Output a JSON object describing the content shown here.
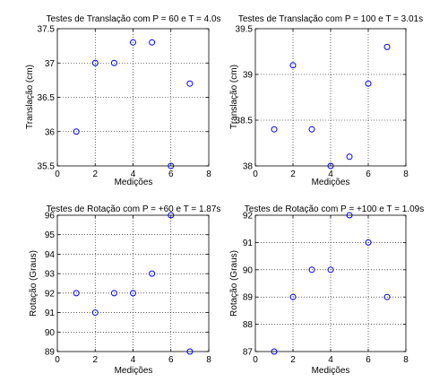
{
  "colors": {
    "marker": "#0000ff",
    "axis": "#000000",
    "grid": "#000000",
    "background": "#ffffff"
  },
  "chart_data": [
    {
      "type": "scatter",
      "title": "Testes de Translação com P = 60 e T = 4.0s",
      "xlabel": "Medições",
      "ylabel": "Translação (cm)",
      "xlim": [
        0,
        8
      ],
      "ylim": [
        35.5,
        37.5
      ],
      "xticks": [
        0,
        2,
        4,
        6,
        8
      ],
      "yticks": [
        35.5,
        36,
        36.5,
        37,
        37.5
      ],
      "xticklabels": [
        "0",
        "2",
        "4",
        "6",
        "8"
      ],
      "yticklabels": [
        "35.5",
        "36",
        "36.5",
        "37",
        "37.5"
      ],
      "grid": true,
      "x": [
        1,
        2,
        3,
        4,
        5,
        6,
        7
      ],
      "y": [
        36.0,
        37.0,
        37.0,
        37.3,
        37.3,
        35.5,
        36.7
      ]
    },
    {
      "type": "scatter",
      "title": "Testes de Translação com P = 100 e T = 3.01s",
      "xlabel": "Medições",
      "ylabel": "Translação (cm)",
      "xlim": [
        0,
        8
      ],
      "ylim": [
        38,
        39.5
      ],
      "xticks": [
        0,
        2,
        4,
        6,
        8
      ],
      "yticks": [
        38,
        38.5,
        39,
        39.5
      ],
      "xticklabels": [
        "0",
        "2",
        "4",
        "6",
        "8"
      ],
      "yticklabels": [
        "38",
        "38.5",
        "39",
        "39.5"
      ],
      "grid": true,
      "x": [
        1,
        2,
        3,
        4,
        5,
        6,
        7
      ],
      "y": [
        38.4,
        39.1,
        38.4,
        38.0,
        38.1,
        38.9,
        39.3
      ]
    },
    {
      "type": "scatter",
      "title": "Testes de Rotação com P = +60 e T = 1.87s",
      "xlabel": "Medições",
      "ylabel": "Rotação (Graus)",
      "xlim": [
        0,
        8
      ],
      "ylim": [
        89,
        96
      ],
      "xticks": [
        0,
        2,
        4,
        6,
        8
      ],
      "yticks": [
        89,
        90,
        91,
        92,
        93,
        94,
        95,
        96
      ],
      "xticklabels": [
        "0",
        "2",
        "4",
        "6",
        "8"
      ],
      "yticklabels": [
        "89",
        "90",
        "91",
        "92",
        "93",
        "94",
        "95",
        "96"
      ],
      "grid": true,
      "x": [
        1,
        2,
        3,
        4,
        5,
        6,
        7
      ],
      "y": [
        92,
        91,
        92,
        92,
        93,
        96,
        89
      ]
    },
    {
      "type": "scatter",
      "title": "Testes de Rotação com P = +100 e T = 1.09s",
      "xlabel": "Medições",
      "ylabel": "Rotação (Graus)",
      "xlim": [
        0,
        8
      ],
      "ylim": [
        87,
        92
      ],
      "xticks": [
        0,
        2,
        4,
        6,
        8
      ],
      "yticks": [
        87,
        88,
        89,
        90,
        91,
        92
      ],
      "xticklabels": [
        "0",
        "2",
        "4",
        "6",
        "8"
      ],
      "yticklabels": [
        "87",
        "88",
        "89",
        "90",
        "91",
        "92"
      ],
      "grid": true,
      "x": [
        1,
        2,
        3,
        4,
        5,
        6,
        7
      ],
      "y": [
        87,
        89,
        90,
        90,
        92,
        91,
        89
      ]
    }
  ]
}
